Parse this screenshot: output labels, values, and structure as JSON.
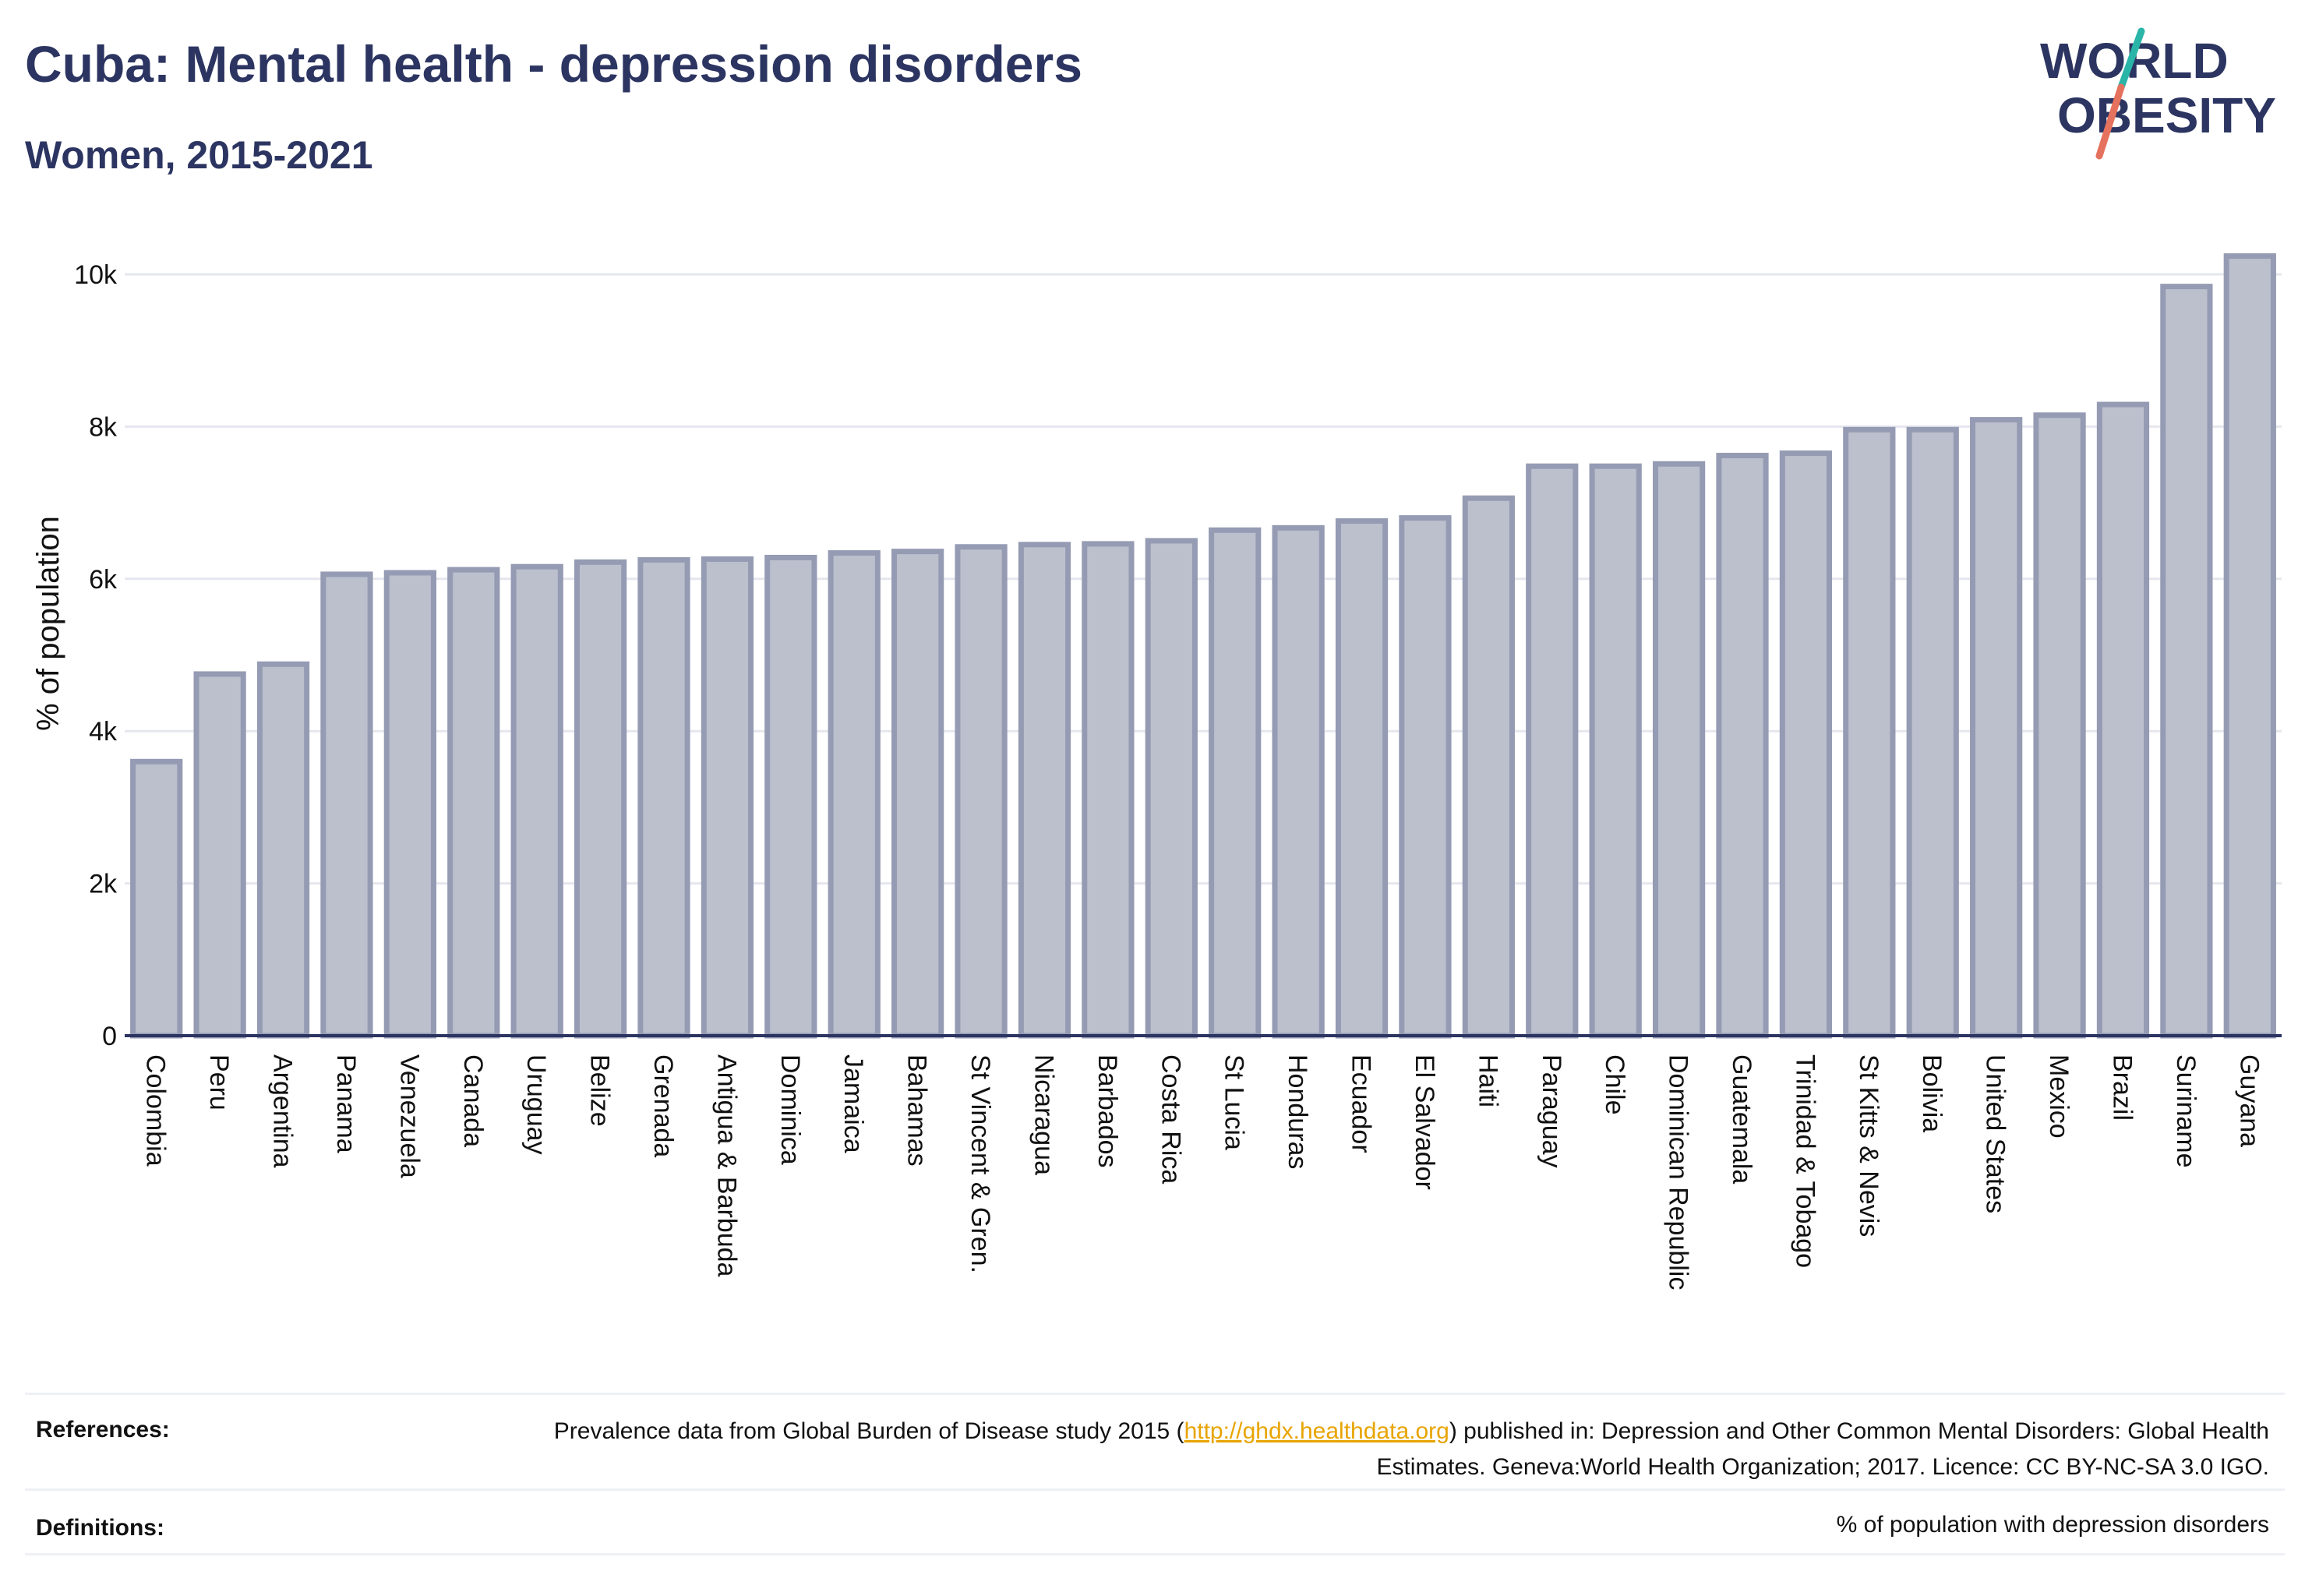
{
  "header": {
    "title": "Cuba: Mental health - depression disorders",
    "subtitle": "Women, 2015-2021"
  },
  "logo": {
    "line1": "WORLD",
    "line2": "OBESITY",
    "colors": {
      "text": "#2c3561",
      "slash_top": "#2bb5a8",
      "slash_bottom": "#e5725e"
    }
  },
  "colors": {
    "bar_fill": "#bcc0cd",
    "bar_stroke": "#959bb3",
    "axis": "#2c3561",
    "grid": "#e6e7ee",
    "text": "#2c3561",
    "link": "#e8a400"
  },
  "chart_data": {
    "type": "bar",
    "title": "",
    "xlabel": "",
    "ylabel": "% of population",
    "ylim": [
      0,
      10500
    ],
    "yticks": [
      0,
      2000,
      4000,
      6000,
      8000,
      10000
    ],
    "ytick_labels": [
      "0",
      "2k",
      "4k",
      "6k",
      "8k",
      "10k"
    ],
    "grid": true,
    "categories": [
      "Colombia",
      "Peru",
      "Argentina",
      "Panama",
      "Venezuela",
      "Canada",
      "Uruguay",
      "Belize",
      "Grenada",
      "Antigua & Barbuda",
      "Dominica",
      "Jamaica",
      "Bahamas",
      "St Vincent & Gren.",
      "Nicaragua",
      "Barbados",
      "Costa Rica",
      "St Lucia",
      "Honduras",
      "Ecuador",
      "El Salvador",
      "Haiti",
      "Paraguay",
      "Chile",
      "Dominican Republic",
      "Guatemala",
      "Trinidad & Tobago",
      "St Kitts & Nevis",
      "Bolivia",
      "United States",
      "Mexico",
      "Brazil",
      "Suriname",
      "Guyana"
    ],
    "values": [
      3600,
      4750,
      4880,
      6060,
      6080,
      6120,
      6160,
      6220,
      6250,
      6260,
      6280,
      6340,
      6360,
      6420,
      6450,
      6460,
      6500,
      6640,
      6670,
      6760,
      6800,
      7060,
      7480,
      7480,
      7510,
      7620,
      7650,
      7960,
      7960,
      8090,
      8150,
      8290,
      9840,
      10240
    ]
  },
  "footer": {
    "references_label": "References:",
    "references_pre": "Prevalence data from Global Burden of Disease study 2015 (",
    "references_link": "http://ghdx.healthdata.org",
    "references_post": ") published in: Depression and Other Common Mental Disorders: Global Health Estimates. Geneva:World Health Organization; 2017. Licence: CC BY-NC-SA 3.0 IGO.",
    "definitions_label": "Definitions:",
    "definitions_text": "% of population with depression disorders"
  }
}
